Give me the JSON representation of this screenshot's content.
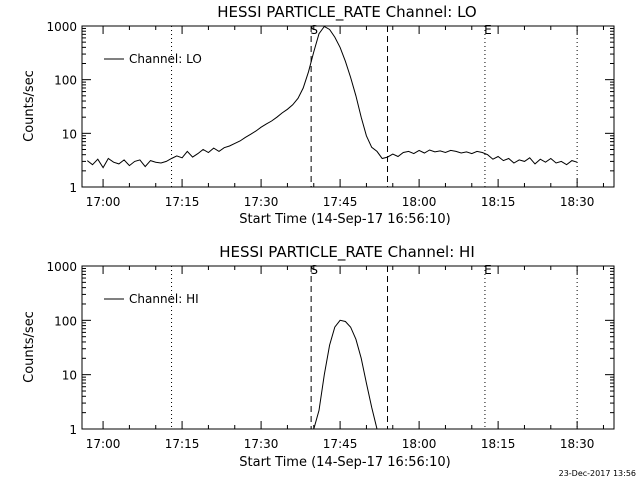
{
  "footer_timestamp": "23-Dec-2017 13:56",
  "chart_data": [
    {
      "type": "line",
      "title": "HESSI PARTICLE_RATE Channel: LO",
      "xlabel": "Start Time (14-Sep-17 16:56:10)",
      "ylabel": "Counts/sec",
      "yscale": "log",
      "ylim": [
        1,
        1000
      ],
      "y_ticks": [
        "1",
        "10",
        "100",
        "1000"
      ],
      "x_unit": "minutes",
      "xlim": [
        "16:56",
        "18:37"
      ],
      "x_ticks": [
        "17:00",
        "17:15",
        "17:30",
        "17:45",
        "18:00",
        "18:15",
        "18:30"
      ],
      "legend": {
        "placement": "top-left"
      },
      "markers": [
        {
          "label": "S",
          "time": "17:39.5",
          "style": "dashed"
        },
        {
          "label": "",
          "time": "17:54",
          "style": "dashed"
        },
        {
          "label": "E",
          "time": "18:12.5",
          "style": "dotted"
        },
        {
          "label": "",
          "time": "17:13",
          "style": "dotted"
        },
        {
          "label": "",
          "time": "18:30",
          "style": "dotted"
        }
      ],
      "series": [
        {
          "name": "Channel: LO",
          "x": [
            "16:57",
            "16:58",
            "16:59",
            "17:00",
            "17:01",
            "17:02",
            "17:03",
            "17:04",
            "17:05",
            "17:06",
            "17:07",
            "17:08",
            "17:09",
            "17:10",
            "17:11",
            "17:12",
            "17:13",
            "17:14",
            "17:15",
            "17:16",
            "17:17",
            "17:18",
            "17:19",
            "17:20",
            "17:21",
            "17:22",
            "17:23",
            "17:24",
            "17:25",
            "17:26",
            "17:27",
            "17:28",
            "17:29",
            "17:30",
            "17:31",
            "17:32",
            "17:33",
            "17:34",
            "17:35",
            "17:36",
            "17:37",
            "17:38",
            "17:39",
            "17:40",
            "17:41",
            "17:42",
            "17:43",
            "17:44",
            "17:45",
            "17:46",
            "17:47",
            "17:48",
            "17:49",
            "17:50",
            "17:51",
            "17:52",
            "17:53",
            "17:54",
            "17:55",
            "17:56",
            "17:57",
            "17:58",
            "17:59",
            "18:00",
            "18:01",
            "18:02",
            "18:03",
            "18:04",
            "18:05",
            "18:06",
            "18:07",
            "18:08",
            "18:09",
            "18:10",
            "18:11",
            "18:12",
            "18:13",
            "18:14",
            "18:15",
            "18:16",
            "18:17",
            "18:18",
            "18:19",
            "18:20",
            "18:21",
            "18:22",
            "18:23",
            "18:24",
            "18:25",
            "18:26",
            "18:27",
            "18:28",
            "18:29",
            "18:30"
          ],
          "y": [
            3.1,
            2.6,
            3.3,
            2.3,
            3.4,
            2.9,
            2.7,
            3.2,
            2.5,
            3.0,
            3.2,
            2.4,
            3.1,
            2.9,
            2.8,
            3.0,
            3.4,
            3.8,
            3.5,
            4.6,
            3.6,
            4.2,
            5.0,
            4.4,
            5.3,
            4.6,
            5.4,
            5.8,
            6.5,
            7.2,
            8.4,
            9.6,
            11,
            13,
            15,
            17,
            20,
            24,
            28,
            34,
            45,
            70,
            140,
            330,
            720,
            980,
            860,
            620,
            400,
            220,
            110,
            50,
            20,
            9,
            5.5,
            4.6,
            3.4,
            3.6,
            4.1,
            3.7,
            4.4,
            4.6,
            4.2,
            4.8,
            4.3,
            4.9,
            4.5,
            4.7,
            4.4,
            4.8,
            4.6,
            4.3,
            4.5,
            4.2,
            4.6,
            4.4,
            4.0,
            3.3,
            3.7,
            3.1,
            3.4,
            2.8,
            3.2,
            3.0,
            3.5,
            2.7,
            3.3,
            2.9,
            3.4,
            2.8,
            3.0,
            2.6,
            3.1,
            2.9
          ]
        }
      ]
    },
    {
      "type": "line",
      "title": "HESSI PARTICLE_RATE Channel: HI",
      "xlabel": "Start Time (14-Sep-17 16:56:10)",
      "ylabel": "Counts/sec",
      "yscale": "log",
      "ylim": [
        1,
        1000
      ],
      "y_ticks": [
        "1",
        "10",
        "100",
        "1000"
      ],
      "x_unit": "minutes",
      "xlim": [
        "16:56",
        "18:37"
      ],
      "x_ticks": [
        "17:00",
        "17:15",
        "17:30",
        "17:45",
        "18:00",
        "18:15",
        "18:30"
      ],
      "legend": {
        "placement": "top-left"
      },
      "markers": [
        {
          "label": "S",
          "time": "17:39.5",
          "style": "dashed"
        },
        {
          "label": "",
          "time": "17:54",
          "style": "dashed"
        },
        {
          "label": "E",
          "time": "18:12.5",
          "style": "dotted"
        },
        {
          "label": "",
          "time": "17:13",
          "style": "dotted"
        },
        {
          "label": "",
          "time": "18:30",
          "style": "dotted"
        }
      ],
      "series": [
        {
          "name": "Channel: HI",
          "x": [
            "17:40",
            "17:41",
            "17:42",
            "17:43",
            "17:44",
            "17:45",
            "17:46",
            "17:47",
            "17:48",
            "17:49",
            "17:50",
            "17:51",
            "17:52"
          ],
          "y": [
            1,
            2.2,
            10,
            35,
            75,
            100,
            95,
            75,
            45,
            20,
            7,
            2.5,
            1
          ]
        }
      ]
    }
  ]
}
